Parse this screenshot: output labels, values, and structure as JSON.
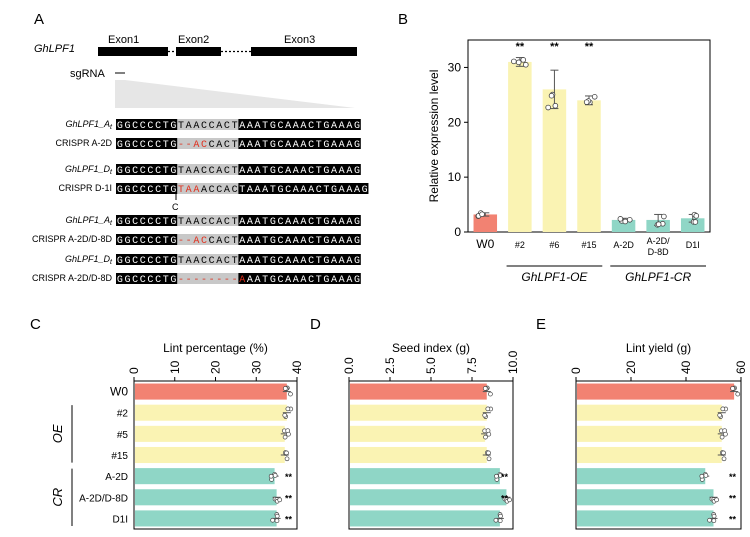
{
  "panel_a": {
    "label": "A",
    "gene": "GhLPF1",
    "exons": [
      "Exon1",
      "Exon2",
      "Exon3"
    ],
    "sgrna": "sgRNA",
    "cut_marker": "C",
    "rows": [
      {
        "label": "GhLPF1_A",
        "sub": "t",
        "seq": "GGCCCCTGTAACCACTAAATGCAAACTGAAAG",
        "marks": []
      },
      {
        "label": "CRISPR A-2D",
        "sub": "",
        "seq": "GGCCCCTG--ACCACTAAATGCAAACTGAAAG",
        "marks": [
          8,
          9,
          10,
          11
        ]
      },
      {
        "label": "GhLPF1_D",
        "sub": "t",
        "seq": "GGCCCCTGTAACCACTAAATGCAAACTGAAAG",
        "marks": []
      },
      {
        "label": "CRISPR D-1I",
        "sub": "",
        "seq": "GGCCCCTGTAAACCACTAAATGCAAACTGAAAG",
        "marks": [
          8,
          9,
          10
        ]
      },
      {
        "label": "GhLPF1_A",
        "sub": "t",
        "seq": "GGCCCCTGTAACCACTAAATGCAAACTGAAAG",
        "marks": []
      },
      {
        "label": "CRISPR A-2D/D-8D",
        "sub": "",
        "seq": "GGCCCCTG--ACCACTAAATGCAAACTGAAAG",
        "marks": [
          8,
          9,
          10,
          11
        ]
      },
      {
        "label": "GhLPF1_D",
        "sub": "t",
        "seq": "GGCCCCTGTAACCACTAAATGCAAACTGAAAG",
        "marks": []
      },
      {
        "label": "CRISPR A-2D/D-8D",
        "sub": "",
        "seq": "GGCCCCTG--------AAATGCAAACTGAAAG",
        "marks": [
          8,
          9,
          10,
          11,
          12,
          13,
          14,
          15,
          16
        ]
      }
    ]
  },
  "chart_data": [
    {
      "panel": "B",
      "type": "bar",
      "ylabel": "Relative expression level",
      "ylim": [
        0,
        35
      ],
      "yticks": [
        0,
        10,
        20,
        30
      ],
      "categories": [
        "W0",
        "#2",
        "#6",
        "#15",
        "A-2D",
        "A-2D/\nD-8D",
        "D1I"
      ],
      "values": [
        3.2,
        31,
        26,
        24,
        2.2,
        2.2,
        2.5
      ],
      "errors": [
        0.3,
        0.8,
        3.5,
        0.8,
        0.3,
        1.0,
        0.7
      ],
      "colors": [
        "#f28272",
        "#faf3b3",
        "#faf3b3",
        "#faf3b3",
        "#8fd6c6",
        "#8fd6c6",
        "#8fd6c6"
      ],
      "significance": [
        "",
        "**",
        "**",
        "**",
        "",
        "",
        ""
      ],
      "groups": [
        {
          "label": "GhLPF1-OE",
          "from": 1,
          "to": 3
        },
        {
          "label": "GhLPF1-CR",
          "from": 4,
          "to": 6
        }
      ]
    },
    {
      "panel": "C",
      "type": "bar",
      "orientation": "horizontal",
      "title": "Lint percentage (%)",
      "xlim": [
        0,
        40
      ],
      "xticks": [
        0,
        10,
        20,
        30,
        40
      ],
      "categories": [
        "W0",
        "#2",
        "#5",
        "#15",
        "A-2D",
        "A-2D/D-8D",
        "D1I"
      ],
      "values": [
        37.5,
        37.5,
        37,
        37,
        34.5,
        35,
        35
      ],
      "significance": [
        "",
        "",
        "",
        "",
        "**",
        "**",
        "**"
      ],
      "groups": [
        {
          "label": "OE",
          "from": 1,
          "to": 3
        },
        {
          "label": "CR",
          "from": 4,
          "to": 6
        }
      ]
    },
    {
      "panel": "D",
      "type": "bar",
      "orientation": "horizontal",
      "title": "Seed index (g)",
      "xlim": [
        0,
        10
      ],
      "xticks": [
        "0.0",
        "2.5",
        "5.0",
        "7.5",
        "10.0"
      ],
      "values": [
        8.4,
        8.4,
        8.3,
        8.4,
        9.2,
        9.6,
        9.2
      ],
      "significance": [
        "",
        "",
        "",
        "",
        "**",
        "**",
        ""
      ]
    },
    {
      "panel": "E",
      "type": "bar",
      "orientation": "horizontal",
      "title": "Lint yield (g)",
      "xlim": [
        0,
        60
      ],
      "xticks": [
        0,
        20,
        40,
        60
      ],
      "values": [
        57.5,
        53,
        53,
        53,
        47,
        50,
        50
      ],
      "significance": [
        "",
        "",
        "",
        "",
        "**",
        "**",
        "**"
      ]
    }
  ],
  "colors": {
    "wt": "#f28272",
    "oe": "#faf3b3",
    "cr": "#8fd6c6"
  },
  "panel_labels": [
    "B",
    "C",
    "D",
    "E"
  ]
}
